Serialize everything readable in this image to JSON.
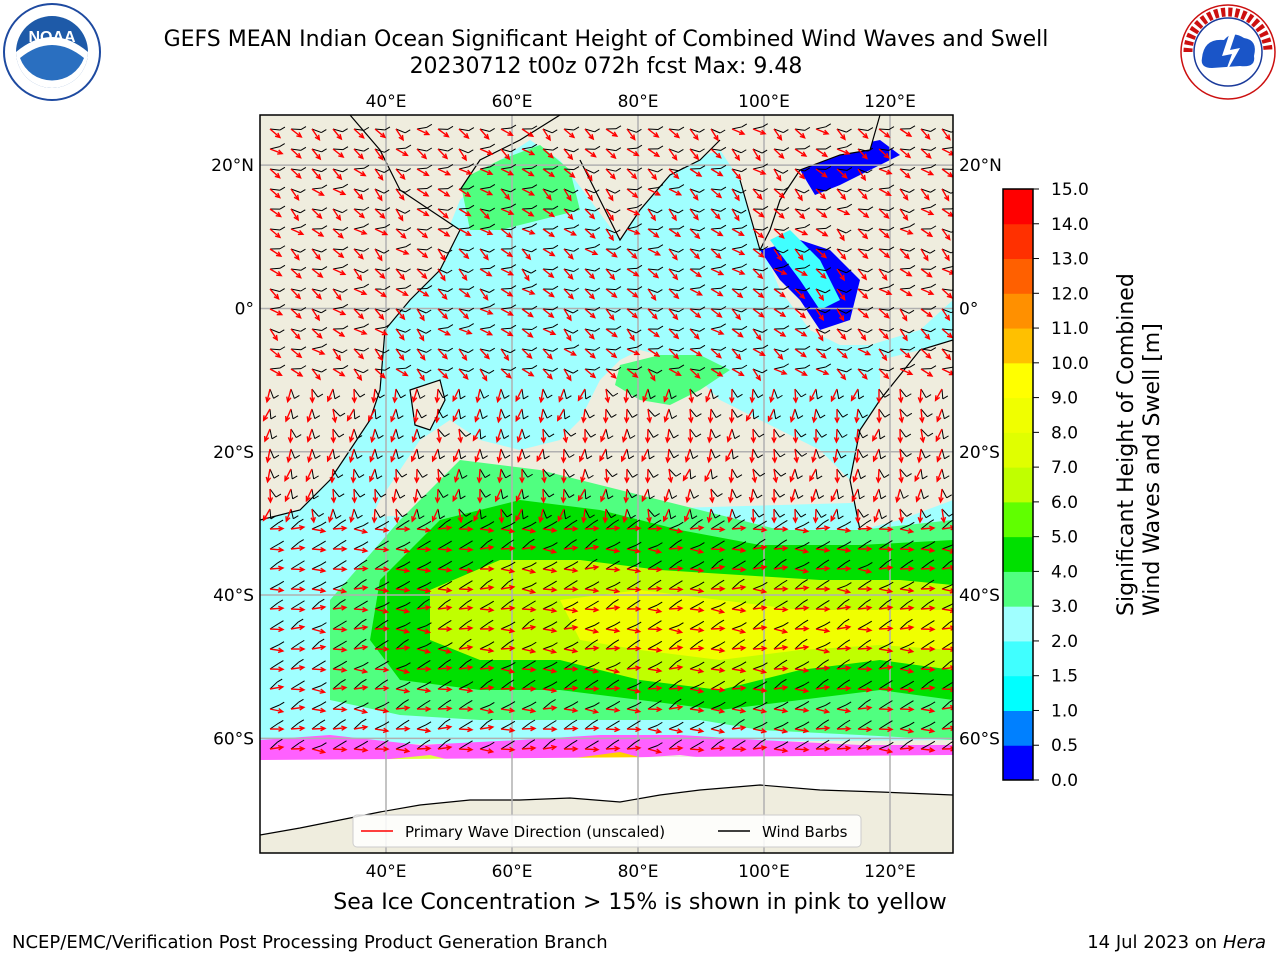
{
  "header": {
    "title_line1": "GEFS MEAN Indian Ocean Significant Height of Combined Wind Waves and Swell",
    "title_line2": "20230712 t00z 072h fcst   Max: 9.48"
  },
  "logos": {
    "left": {
      "icon": "noaa-logo",
      "text": "NOAA"
    },
    "right": {
      "icon": "national-weather-service-logo"
    }
  },
  "map": {
    "projection": "lat-lon",
    "lon_range": [
      20,
      130
    ],
    "lat_range": [
      -76,
      27
    ],
    "lon_ticks": [
      "40°E",
      "60°E",
      "80°E",
      "100°E",
      "120°E"
    ],
    "lon_tick_values": [
      40,
      60,
      80,
      100,
      120
    ],
    "lat_ticks": [
      "20°N",
      "0°",
      "20°S",
      "40°S",
      "60°S"
    ],
    "lat_tick_values": [
      20,
      0,
      -20,
      -40,
      -60
    ],
    "grid": true,
    "land_color": "#efedde",
    "wave_direction_color": "#ff0000",
    "barb_color": "#000000"
  },
  "legend": {
    "placement": "bottom-center",
    "items": [
      {
        "label": "Primary Wave Direction (unscaled)",
        "color": "#ff0000"
      },
      {
        "label": "Wind Barbs",
        "color": "#000000"
      }
    ]
  },
  "colorbar": {
    "title_line1": "Significant Height of Combined",
    "title_line2": "Wind Waves and Swell [m]",
    "ticks": [
      "0.0",
      "0.5",
      "1.0",
      "1.5",
      "2.0",
      "3.0",
      "4.0",
      "5.0",
      "6.0",
      "7.0",
      "8.0",
      "9.0",
      "10.0",
      "11.0",
      "12.0",
      "13.0",
      "14.0",
      "15.0"
    ],
    "colors": [
      "#0000ff",
      "#0080ff",
      "#00ffff",
      "#40ffff",
      "#a0ffff",
      "#50ff80",
      "#00e000",
      "#60ff00",
      "#c0ff00",
      "#e0ff00",
      "#f0ff00",
      "#ffff00",
      "#ffc000",
      "#ff9000",
      "#ff6000",
      "#ff3000",
      "#ff0000"
    ]
  },
  "caption": "Sea Ice Concentration > 15% is shown in pink to yellow",
  "footer": {
    "left": "NCEP/EMC/Verification Post Processing Product Generation Branch",
    "right_date": "14 Jul 2023 on",
    "right_host": "Hera"
  }
}
